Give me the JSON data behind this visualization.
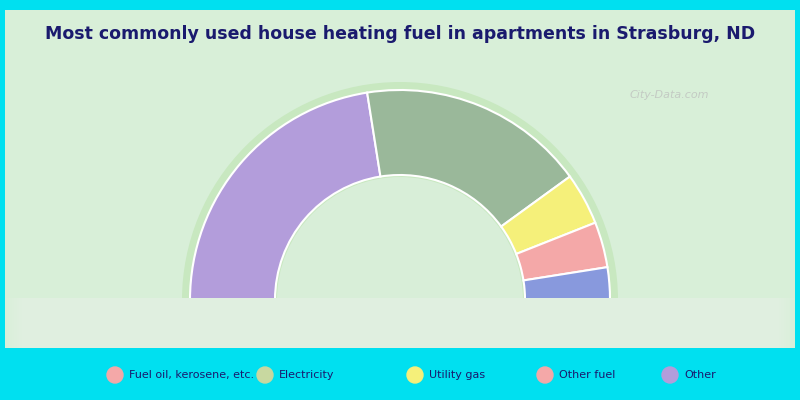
{
  "title": "Most commonly used house heating fuel in apartments in Strasburg, ND",
  "segments": [
    {
      "label": "Other",
      "value": 45,
      "color": "#b39ddb"
    },
    {
      "label": "Fuel oil, kerosene, etc.",
      "value": 35,
      "color": "#9ab89a"
    },
    {
      "label": "Utility gas",
      "value": 8,
      "color": "#f5f07a"
    },
    {
      "label": "Other fuel",
      "value": 7,
      "color": "#f4a8a8"
    },
    {
      "label": "Electricity",
      "value": 5,
      "color": "#8899dd"
    }
  ],
  "legend_labels": [
    "Fuel oil, kerosene, etc.",
    "Electricity",
    "Utility gas",
    "Other fuel",
    "Other"
  ],
  "legend_colors": [
    "#f4a8a8",
    "#c8d8a0",
    "#f5f07a",
    "#f4a8a8",
    "#b39ddb"
  ],
  "bg_color": "#00e0f0",
  "chart_area_color_outer": "#c8e8c8",
  "chart_area_color_inner": "#e8f5e8",
  "title_color": "#1a1a6e",
  "watermark": "City-Data.com",
  "watermark_color": "#bbbbbb"
}
